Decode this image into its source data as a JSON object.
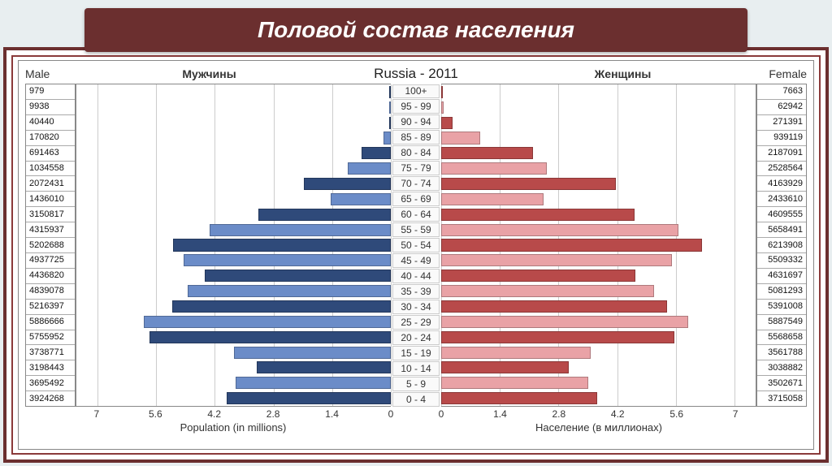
{
  "title": "Половой состав населения",
  "chart": {
    "type": "population-pyramid",
    "title": "Russia - 2011",
    "header": {
      "male_en": "Male",
      "male_ru": "Мужчины",
      "female_en": "Female",
      "female_ru": "Женщины"
    },
    "xlim_millions": 7.5,
    "xticks": [
      "7",
      "5.6",
      "4.2",
      "2.8",
      "1.4",
      "0"
    ],
    "xticks_right": [
      "0",
      "1.4",
      "2.8",
      "4.2",
      "5.6",
      "7"
    ],
    "axis_label_left": "Population (in millions)",
    "axis_label_right": "Население (в миллионах)",
    "background_color": "#ffffff",
    "grid_color": "#cccccc",
    "border_color": "#888888",
    "title_fontsize": 17,
    "label_fontsize": 12,
    "bar_height_ratio": 0.8,
    "age_groups": [
      "100+",
      "95 - 99",
      "90 - 94",
      "85 - 89",
      "80 - 84",
      "75 - 79",
      "70 - 74",
      "65 - 69",
      "60 - 64",
      "55 - 59",
      "50 - 54",
      "45 - 49",
      "40 - 44",
      "35 - 39",
      "30 - 34",
      "25 - 29",
      "20 - 24",
      "15 - 19",
      "10 - 14",
      "5 - 9",
      "0 - 4"
    ],
    "male": {
      "values": [
        979,
        9938,
        40440,
        170820,
        691463,
        1034558,
        2072431,
        1436010,
        3150817,
        4315937,
        5202688,
        4937725,
        4436820,
        4839078,
        5216397,
        5886666,
        5755952,
        3738771,
        3198443,
        3695492,
        3924268
      ],
      "colors": [
        "#2f4a7a",
        "#6b8cc8",
        "#2f4a7a",
        "#6b8cc8",
        "#2f4a7a",
        "#6b8cc8",
        "#2f4a7a",
        "#6b8cc8",
        "#2f4a7a",
        "#6b8cc8",
        "#2f4a7a",
        "#6b8cc8",
        "#2f4a7a",
        "#6b8cc8",
        "#2f4a7a",
        "#6b8cc8",
        "#2f4a7a",
        "#6b8cc8",
        "#2f4a7a",
        "#6b8cc8",
        "#2f4a7a"
      ]
    },
    "female": {
      "values": [
        7663,
        62942,
        271391,
        939119,
        2187091,
        2528564,
        4163929,
        2433610,
        4609555,
        5658491,
        6213908,
        5509332,
        4631697,
        5081293,
        5391008,
        5887549,
        5568658,
        3561788,
        3038882,
        3502671,
        3715058
      ],
      "colors": [
        "#b84a4a",
        "#e9a2a6",
        "#b84a4a",
        "#e9a2a6",
        "#b84a4a",
        "#e9a2a6",
        "#b84a4a",
        "#e9a2a6",
        "#b84a4a",
        "#e9a2a6",
        "#b84a4a",
        "#e9a2a6",
        "#b84a4a",
        "#e9a2a6",
        "#b84a4a",
        "#e9a2a6",
        "#b84a4a",
        "#e9a2a6",
        "#b84a4a",
        "#e9a2a6",
        "#b84a4a"
      ]
    }
  },
  "banner": {
    "bg": "#6b2f2f",
    "text_color": "#ffffff",
    "fontsize": 28
  }
}
